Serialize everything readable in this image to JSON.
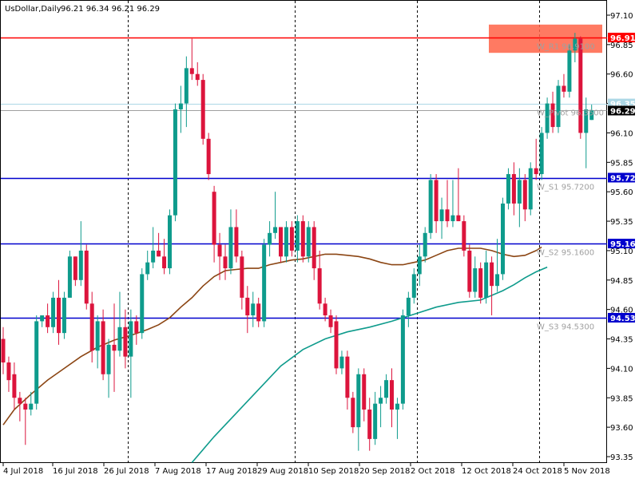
{
  "header": {
    "symbol_label": "UsDollar,Daily",
    "ohlc_text": "96.21 96.34 96.21 96.29"
  },
  "chart_data": {
    "type": "candlestick",
    "ylim": [
      93.2,
      97.15
    ],
    "y_ticks": [
      "97.10",
      "96.85",
      "96.60",
      "96.35",
      "96.10",
      "95.85",
      "95.60",
      "95.35",
      "95.10",
      "94.85",
      "94.60",
      "94.35",
      "94.10",
      "93.85",
      "93.60",
      "93.35"
    ],
    "x_labels": [
      "4 Jul 2018",
      "16 Jul 2018",
      "26 Jul 2018",
      "7 Aug 2018",
      "17 Aug 2018",
      "29 Aug 2018",
      "10 Sep 2018",
      "20 Sep 2018",
      "2 Oct 2018",
      "12 Oct 2018",
      "24 Oct 2018",
      "5 Nov 2018"
    ],
    "vertical_separator_after_candles": [
      22,
      52,
      74,
      96
    ],
    "candles": [
      {
        "o": 94.35,
        "h": 94.45,
        "l": 94.05,
        "c": 94.15
      },
      {
        "o": 94.15,
        "h": 94.2,
        "l": 93.9,
        "c": 94.0
      },
      {
        "o": 94.05,
        "h": 94.15,
        "l": 93.75,
        "c": 93.85
      },
      {
        "o": 93.85,
        "h": 93.9,
        "l": 93.65,
        "c": 93.8
      },
      {
        "o": 93.8,
        "h": 93.85,
        "l": 93.45,
        "c": 93.75
      },
      {
        "o": 93.75,
        "h": 93.9,
        "l": 93.7,
        "c": 93.8
      },
      {
        "o": 93.8,
        "h": 94.55,
        "l": 93.75,
        "c": 94.5
      },
      {
        "o": 94.5,
        "h": 94.55,
        "l": 94.45,
        "c": 94.55
      },
      {
        "o": 94.55,
        "h": 94.65,
        "l": 94.4,
        "c": 94.45
      },
      {
        "o": 94.45,
        "h": 94.75,
        "l": 94.4,
        "c": 94.7
      },
      {
        "o": 94.7,
        "h": 94.85,
        "l": 94.3,
        "c": 94.4
      },
      {
        "o": 94.4,
        "h": 94.75,
        "l": 94.35,
        "c": 94.7
      },
      {
        "o": 94.7,
        "h": 95.1,
        "l": 94.7,
        "c": 95.05
      },
      {
        "o": 95.05,
        "h": 95.05,
        "l": 94.8,
        "c": 94.85
      },
      {
        "o": 94.85,
        "h": 95.35,
        "l": 94.8,
        "c": 95.1
      },
      {
        "o": 95.1,
        "h": 95.15,
        "l": 94.6,
        "c": 94.65
      },
      {
        "o": 94.65,
        "h": 94.75,
        "l": 94.15,
        "c": 94.25
      },
      {
        "o": 94.25,
        "h": 94.55,
        "l": 94.1,
        "c": 94.5
      },
      {
        "o": 94.5,
        "h": 94.6,
        "l": 94.0,
        "c": 94.05
      },
      {
        "o": 94.05,
        "h": 94.35,
        "l": 93.85,
        "c": 94.3
      },
      {
        "o": 94.3,
        "h": 94.65,
        "l": 93.9,
        "c": 94.25
      },
      {
        "o": 94.25,
        "h": 94.75,
        "l": 94.2,
        "c": 94.45
      },
      {
        "o": 94.45,
        "h": 94.6,
        "l": 94.1,
        "c": 94.2
      },
      {
        "o": 94.2,
        "h": 94.6,
        "l": 93.85,
        "c": 94.5
      },
      {
        "o": 94.5,
        "h": 94.55,
        "l": 94.3,
        "c": 94.4
      },
      {
        "o": 94.4,
        "h": 94.95,
        "l": 94.35,
        "c": 94.9
      },
      {
        "o": 94.9,
        "h": 95.1,
        "l": 94.85,
        "c": 95.0
      },
      {
        "o": 95.0,
        "h": 95.3,
        "l": 94.95,
        "c": 95.1
      },
      {
        "o": 95.1,
        "h": 95.25,
        "l": 95.05,
        "c": 95.05
      },
      {
        "o": 95.05,
        "h": 95.2,
        "l": 94.9,
        "c": 94.95
      },
      {
        "o": 94.95,
        "h": 95.45,
        "l": 94.9,
        "c": 95.4
      },
      {
        "o": 95.4,
        "h": 96.35,
        "l": 95.35,
        "c": 96.3
      },
      {
        "o": 96.3,
        "h": 96.5,
        "l": 96.1,
        "c": 96.35
      },
      {
        "o": 96.35,
        "h": 96.75,
        "l": 96.15,
        "c": 96.65
      },
      {
        "o": 96.65,
        "h": 96.9,
        "l": 96.55,
        "c": 96.6
      },
      {
        "o": 96.6,
        "h": 96.7,
        "l": 96.5,
        "c": 96.55
      },
      {
        "o": 96.55,
        "h": 96.6,
        "l": 96.0,
        "c": 96.05
      },
      {
        "o": 96.05,
        "h": 96.1,
        "l": 95.7,
        "c": 95.75
      },
      {
        "o": 95.6,
        "h": 95.65,
        "l": 95.0,
        "c": 95.15
      },
      {
        "o": 95.15,
        "h": 95.25,
        "l": 94.85,
        "c": 95.05
      },
      {
        "o": 95.05,
        "h": 95.15,
        "l": 94.85,
        "c": 94.95
      },
      {
        "o": 94.95,
        "h": 95.45,
        "l": 94.9,
        "c": 95.3
      },
      {
        "o": 95.3,
        "h": 95.45,
        "l": 95.0,
        "c": 95.05
      },
      {
        "o": 95.05,
        "h": 95.1,
        "l": 94.6,
        "c": 94.7
      },
      {
        "o": 94.7,
        "h": 94.8,
        "l": 94.4,
        "c": 94.55
      },
      {
        "o": 94.55,
        "h": 94.75,
        "l": 94.45,
        "c": 94.65
      },
      {
        "o": 94.65,
        "h": 94.7,
        "l": 94.45,
        "c": 94.5
      },
      {
        "o": 94.5,
        "h": 95.2,
        "l": 94.45,
        "c": 95.15
      },
      {
        "o": 95.15,
        "h": 95.35,
        "l": 95.05,
        "c": 95.25
      },
      {
        "o": 95.25,
        "h": 95.6,
        "l": 95.2,
        "c": 95.3
      },
      {
        "o": 95.3,
        "h": 95.3,
        "l": 95.0,
        "c": 95.05
      },
      {
        "o": 95.05,
        "h": 95.35,
        "l": 95.0,
        "c": 95.3
      },
      {
        "o": 95.3,
        "h": 95.35,
        "l": 95.05,
        "c": 95.1
      },
      {
        "o": 95.1,
        "h": 95.4,
        "l": 95.0,
        "c": 95.35
      },
      {
        "o": 95.35,
        "h": 95.4,
        "l": 95.0,
        "c": 95.05
      },
      {
        "o": 95.05,
        "h": 95.35,
        "l": 95.0,
        "c": 95.3
      },
      {
        "o": 95.3,
        "h": 95.35,
        "l": 94.85,
        "c": 94.95
      },
      {
        "o": 94.95,
        "h": 95.1,
        "l": 94.6,
        "c": 94.65
      },
      {
        "o": 94.65,
        "h": 94.7,
        "l": 94.5,
        "c": 94.55
      },
      {
        "o": 94.55,
        "h": 94.6,
        "l": 94.4,
        "c": 94.45
      },
      {
        "o": 94.5,
        "h": 94.55,
        "l": 94.05,
        "c": 94.1
      },
      {
        "o": 94.1,
        "h": 94.25,
        "l": 94.05,
        "c": 94.2
      },
      {
        "o": 94.2,
        "h": 94.25,
        "l": 93.75,
        "c": 93.85
      },
      {
        "o": 93.85,
        "h": 93.9,
        "l": 93.55,
        "c": 93.6
      },
      {
        "o": 93.6,
        "h": 94.1,
        "l": 93.4,
        "c": 94.05
      },
      {
        "o": 94.05,
        "h": 94.1,
        "l": 93.65,
        "c": 93.75
      },
      {
        "o": 93.75,
        "h": 93.85,
        "l": 93.4,
        "c": 93.5
      },
      {
        "o": 93.5,
        "h": 93.9,
        "l": 93.45,
        "c": 93.8
      },
      {
        "o": 93.8,
        "h": 93.95,
        "l": 93.6,
        "c": 93.85
      },
      {
        "o": 93.85,
        "h": 94.05,
        "l": 93.8,
        "c": 94.0
      },
      {
        "o": 94.0,
        "h": 94.1,
        "l": 93.6,
        "c": 93.75
      },
      {
        "o": 93.75,
        "h": 93.85,
        "l": 93.5,
        "c": 93.8
      },
      {
        "o": 93.8,
        "h": 94.6,
        "l": 93.75,
        "c": 94.55
      },
      {
        "o": 94.55,
        "h": 94.75,
        "l": 94.45,
        "c": 94.7
      },
      {
        "o": 94.7,
        "h": 94.95,
        "l": 94.65,
        "c": 94.9
      },
      {
        "o": 94.9,
        "h": 95.15,
        "l": 94.8,
        "c": 95.05
      },
      {
        "o": 95.05,
        "h": 95.3,
        "l": 95.0,
        "c": 95.25
      },
      {
        "o": 95.25,
        "h": 95.75,
        "l": 95.2,
        "c": 95.7
      },
      {
        "o": 95.7,
        "h": 95.75,
        "l": 95.25,
        "c": 95.35
      },
      {
        "o": 95.35,
        "h": 95.55,
        "l": 95.2,
        "c": 95.45
      },
      {
        "o": 95.45,
        "h": 95.7,
        "l": 95.3,
        "c": 95.35
      },
      {
        "o": 95.35,
        "h": 95.7,
        "l": 95.3,
        "c": 95.4
      },
      {
        "o": 95.4,
        "h": 95.8,
        "l": 95.35,
        "c": 95.35
      },
      {
        "o": 95.35,
        "h": 95.4,
        "l": 95.05,
        "c": 95.1
      },
      {
        "o": 95.1,
        "h": 95.15,
        "l": 94.7,
        "c": 94.75
      },
      {
        "o": 94.75,
        "h": 95.05,
        "l": 94.7,
        "c": 94.95
      },
      {
        "o": 94.95,
        "h": 95.0,
        "l": 94.65,
        "c": 94.7
      },
      {
        "o": 94.7,
        "h": 95.1,
        "l": 94.65,
        "c": 95.0
      },
      {
        "o": 95.0,
        "h": 95.05,
        "l": 94.55,
        "c": 94.8
      },
      {
        "o": 94.8,
        "h": 95.2,
        "l": 94.75,
        "c": 94.9
      },
      {
        "o": 94.9,
        "h": 95.55,
        "l": 94.85,
        "c": 95.5
      },
      {
        "o": 95.5,
        "h": 95.8,
        "l": 95.45,
        "c": 95.75
      },
      {
        "o": 95.75,
        "h": 95.85,
        "l": 95.4,
        "c": 95.5
      },
      {
        "o": 95.5,
        "h": 95.8,
        "l": 95.3,
        "c": 95.7
      },
      {
        "o": 95.7,
        "h": 95.75,
        "l": 95.35,
        "c": 95.45
      },
      {
        "o": 95.45,
        "h": 95.85,
        "l": 95.4,
        "c": 95.8
      },
      {
        "o": 95.8,
        "h": 96.05,
        "l": 95.7,
        "c": 95.75
      },
      {
        "o": 95.75,
        "h": 96.15,
        "l": 95.7,
        "c": 96.1
      },
      {
        "o": 96.1,
        "h": 96.4,
        "l": 96.05,
        "c": 96.35
      },
      {
        "o": 96.35,
        "h": 96.45,
        "l": 96.1,
        "c": 96.15
      },
      {
        "o": 96.15,
        "h": 96.55,
        "l": 96.1,
        "c": 96.5
      },
      {
        "o": 96.5,
        "h": 96.6,
        "l": 96.4,
        "c": 96.45
      },
      {
        "o": 96.45,
        "h": 96.85,
        "l": 96.4,
        "c": 96.8
      },
      {
        "o": 96.8,
        "h": 96.95,
        "l": 96.7,
        "c": 96.9
      },
      {
        "o": 96.9,
        "h": 96.92,
        "l": 96.05,
        "c": 96.1
      },
      {
        "o": 96.1,
        "h": 96.4,
        "l": 95.8,
        "c": 96.3
      },
      {
        "o": 96.21,
        "h": 96.34,
        "l": 96.21,
        "c": 96.29
      }
    ],
    "ma_brown": [
      [
        0,
        93.62
      ],
      [
        2,
        93.75
      ],
      [
        5,
        93.88
      ],
      [
        8,
        94.0
      ],
      [
        11,
        94.1
      ],
      [
        14,
        94.2
      ],
      [
        17,
        94.28
      ],
      [
        20,
        94.34
      ],
      [
        23,
        94.38
      ],
      [
        26,
        94.43
      ],
      [
        28,
        94.47
      ],
      [
        30,
        94.53
      ],
      [
        32,
        94.62
      ],
      [
        34,
        94.7
      ],
      [
        36,
        94.8
      ],
      [
        38,
        94.88
      ],
      [
        40,
        94.93
      ],
      [
        42,
        94.94
      ],
      [
        44,
        94.95
      ],
      [
        46,
        94.95
      ],
      [
        48,
        94.98
      ],
      [
        50,
        95.0
      ],
      [
        52,
        95.02
      ],
      [
        54,
        95.03
      ],
      [
        56,
        95.05
      ],
      [
        58,
        95.07
      ],
      [
        60,
        95.07
      ],
      [
        62,
        95.06
      ],
      [
        64,
        95.05
      ],
      [
        66,
        95.03
      ],
      [
        68,
        95.0
      ],
      [
        70,
        94.98
      ],
      [
        72,
        94.98
      ],
      [
        74,
        95.0
      ],
      [
        76,
        95.02
      ],
      [
        78,
        95.06
      ],
      [
        80,
        95.1
      ],
      [
        82,
        95.12
      ],
      [
        84,
        95.12
      ],
      [
        86,
        95.12
      ],
      [
        88,
        95.1
      ],
      [
        90,
        95.07
      ],
      [
        92,
        95.05
      ],
      [
        94,
        95.06
      ],
      [
        96,
        95.1
      ],
      [
        97,
        95.13
      ]
    ],
    "ma_green": [
      [
        34,
        93.3
      ],
      [
        38,
        93.52
      ],
      [
        42,
        93.72
      ],
      [
        46,
        93.92
      ],
      [
        50,
        94.12
      ],
      [
        54,
        94.26
      ],
      [
        58,
        94.35
      ],
      [
        62,
        94.41
      ],
      [
        66,
        94.45
      ],
      [
        70,
        94.5
      ],
      [
        74,
        94.56
      ],
      [
        78,
        94.62
      ],
      [
        82,
        94.66
      ],
      [
        86,
        94.68
      ],
      [
        88,
        94.72
      ],
      [
        90,
        94.76
      ],
      [
        92,
        94.81
      ],
      [
        94,
        94.87
      ],
      [
        96,
        94.92
      ],
      [
        98,
        94.96
      ]
    ],
    "h_lines": [
      {
        "label_text": "W_R1 96.9100",
        "axis_tag": "96.91",
        "value": 96.91,
        "color": "#ff0000"
      },
      {
        "label_text": "W_Pivot 96.3500",
        "axis_tag": "96.35",
        "value": 96.35,
        "color": "#add8e6"
      },
      {
        "label_text": "W_S1 95.7200",
        "axis_tag": "95.72",
        "value": 95.72,
        "color": "#0000cd"
      },
      {
        "label_text": "W_S2 95.1600",
        "axis_tag": "95.16",
        "value": 95.16,
        "color": "#0000cd"
      },
      {
        "label_text": "W_S3 94.5300",
        "axis_tag": "94.53",
        "value": 94.53,
        "color": "#0000cd"
      }
    ],
    "current_price_tag": "96.29",
    "current_price": 96.29,
    "highlight_zone": {
      "from": 96.78,
      "to": 97.02
    },
    "colors": {
      "up": "#0e9b8c",
      "down": "#dc143c",
      "ma_brown": "#8b4513",
      "ma_green": "#0e9b8c",
      "grid": "#000000",
      "zone": "#ff6347",
      "price_line": "#808080"
    }
  }
}
